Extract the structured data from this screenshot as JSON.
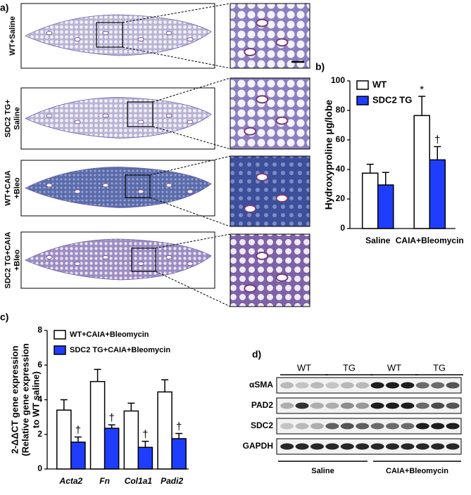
{
  "panel_labels": [
    "a)",
    "b)",
    "c)",
    "d)"
  ],
  "histology": {
    "rows": [
      [
        "WT+Saline"
      ],
      [
        "SDC2 TG+",
        "Saline"
      ],
      [
        "WT+CAIA",
        "+Bleo"
      ],
      [
        "SDC2 TG+CAIA",
        "+Bleo"
      ]
    ]
  },
  "chart_data": [
    {
      "type": "bar",
      "y_label": "Hydroxyproline μg/lobe",
      "categories": [
        "Saline",
        "CAIA+Bleomycin"
      ],
      "series": [
        {
          "name": "WT",
          "color": "#ffffff",
          "values": [
            37.5,
            76.5
          ],
          "errors": [
            6,
            13
          ],
          "annotations": [
            null,
            "*"
          ]
        },
        {
          "name": "SDC2 TG",
          "color": "#1f3dff",
          "values": [
            29.5,
            46.5
          ],
          "errors": [
            8.5,
            9
          ],
          "annotations": [
            null,
            "†"
          ]
        }
      ],
      "ylim": [
        0,
        100
      ],
      "yticks": [
        0,
        20,
        40,
        60,
        80,
        100
      ],
      "grid": false,
      "legend": "top-left"
    },
    {
      "type": "bar",
      "y_label": [
        "2-ΔΔCT gene expression",
        "(Relative gene expression",
        "to WT saline)"
      ],
      "categories": [
        "Acta2",
        "Fn",
        "Col1a1",
        "Padi2"
      ],
      "series": [
        {
          "name": "WT+CAIA+Bleomycin",
          "color": "#ffffff",
          "values": [
            3.4,
            5.05,
            3.35,
            4.45
          ],
          "errors": [
            0.6,
            0.7,
            0.45,
            0.7
          ]
        },
        {
          "name": "SDC2 TG+CAIA+Bleomycin",
          "color": "#1f3dff",
          "values": [
            1.55,
            2.35,
            1.25,
            1.75
          ],
          "errors": [
            0.3,
            0.2,
            0.35,
            0.3
          ],
          "annotations": [
            "†",
            "†",
            "†",
            "†"
          ]
        }
      ],
      "ylim": [
        0,
        8
      ],
      "yticks": [
        0,
        2,
        4,
        6,
        8
      ],
      "grid": false,
      "legend": "top-left"
    }
  ],
  "western_blot": {
    "groups": [
      "WT",
      "TG",
      "WT",
      "TG"
    ],
    "rows": [
      "αSMA",
      "PAD2",
      "SDC2",
      "GAPDH"
    ],
    "conditions": [
      "Saline",
      "CAIA+Bleomycin"
    ]
  }
}
